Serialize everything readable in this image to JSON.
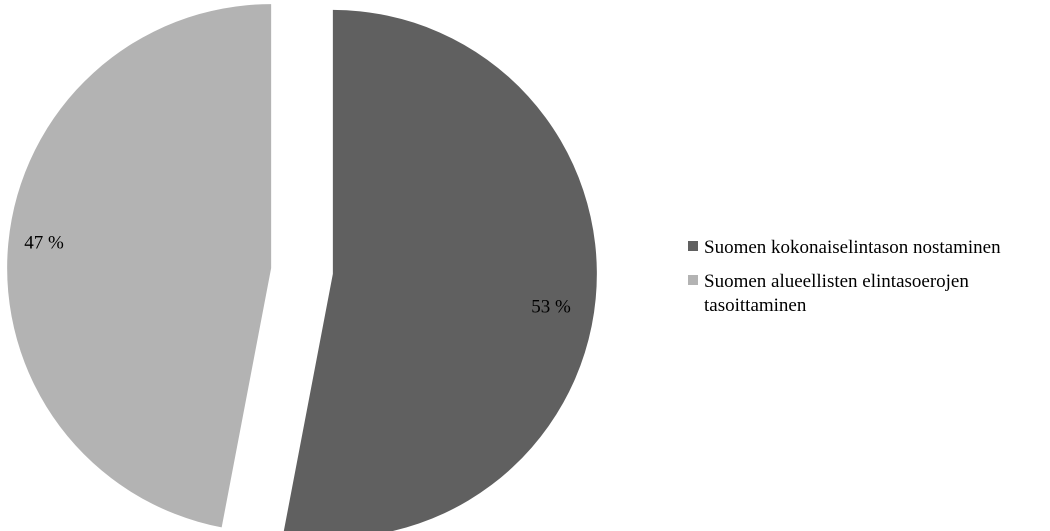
{
  "chart_data": {
    "type": "pie",
    "title": "",
    "exploded": true,
    "slices": [
      {
        "name": "Suomen kokonaiselintason nostaminen",
        "value": 53,
        "label": "53 %",
        "color": "#606060"
      },
      {
        "name": "Suomen alueellisten elintasoerojen tasoittaminen",
        "value": 47,
        "label": "47 %",
        "color": "#b3b3b3"
      }
    ],
    "legend_position": "right"
  }
}
